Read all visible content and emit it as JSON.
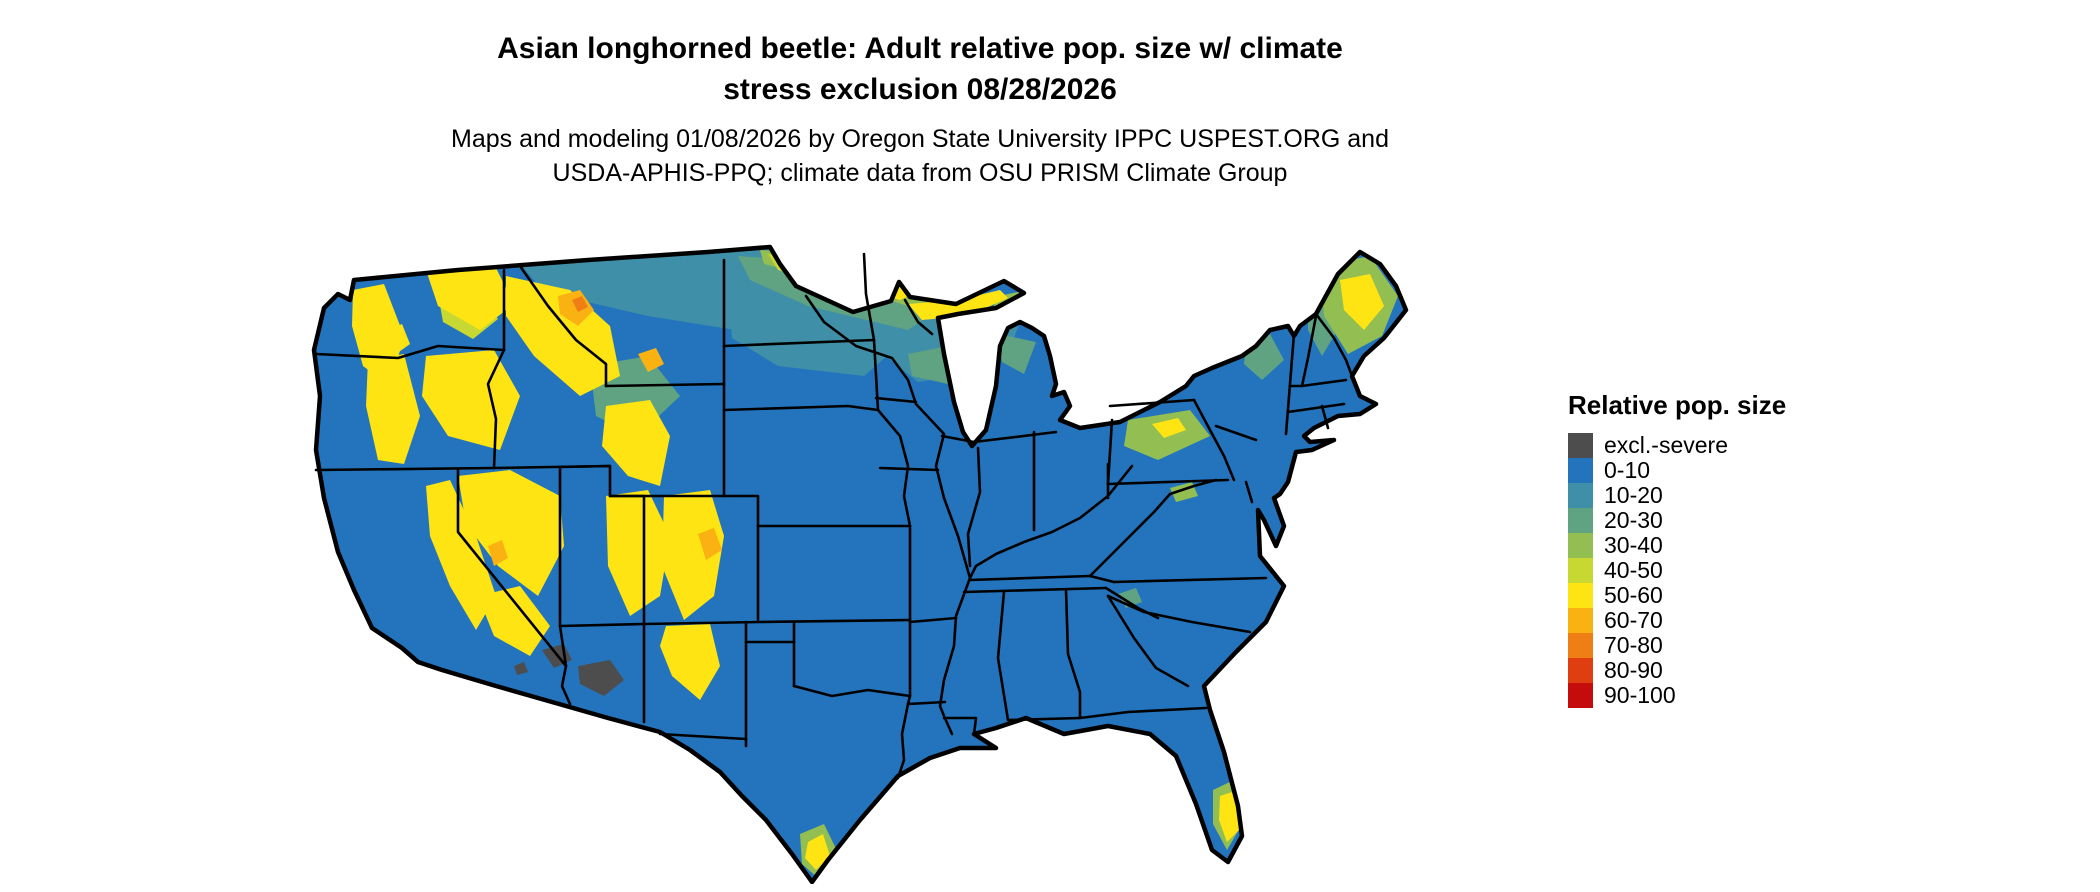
{
  "title": {
    "line1": "Asian longhorned beetle: Adult relative pop. size w/ climate",
    "line2": "stress exclusion 08/28/2026"
  },
  "subtitle": {
    "line1": "Maps and modeling 01/08/2026 by Oregon State University IPPC USPEST.ORG and",
    "line2": "USDA-APHIS-PPQ; climate data from OSU PRISM Climate Group"
  },
  "map": {
    "region": "Contiguous United States",
    "type": "choropleth raster of relative population size",
    "water_color": "#FFFFFF",
    "state_border_color": "#000000"
  },
  "legend": {
    "title": "Relative pop. size",
    "items": [
      {
        "label": "excl.-severe",
        "color": "#4D4D4D"
      },
      {
        "label": "0-10",
        "color": "#2374BC"
      },
      {
        "label": "10-20",
        "color": "#3F8FA8"
      },
      {
        "label": "20-30",
        "color": "#5FA383"
      },
      {
        "label": "30-40",
        "color": "#93BE51"
      },
      {
        "label": "40-50",
        "color": "#C6D831"
      },
      {
        "label": "50-60",
        "color": "#FFE414"
      },
      {
        "label": "60-70",
        "color": "#F9B211"
      },
      {
        "label": "70-80",
        "color": "#EF7E14"
      },
      {
        "label": "80-90",
        "color": "#DE3E10"
      },
      {
        "label": "90-100",
        "color": "#C40C0C"
      }
    ]
  }
}
